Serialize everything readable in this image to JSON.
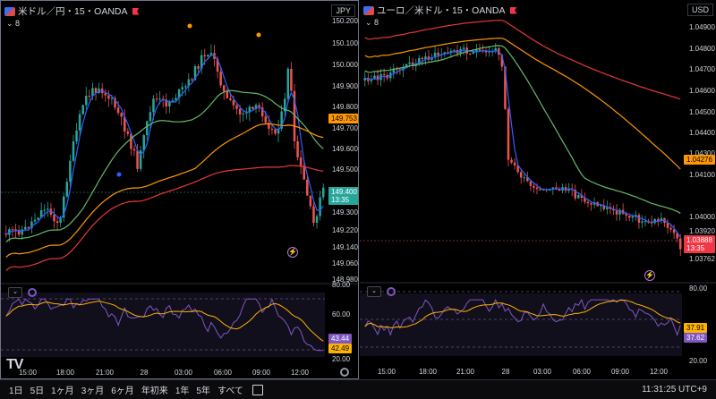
{
  "left": {
    "title": "米ドル／円・15・OANDA",
    "collapse": "⌄ 8",
    "currency": "JPY",
    "price_axis": [
      "150.200",
      "150.100",
      "150.000",
      "149.900",
      "149.800",
      "149.700",
      "149.600",
      "149.500",
      "149.300",
      "149.220",
      "149.140",
      "149.060",
      "148.980"
    ],
    "tag_orange": "149.753",
    "tag_current": "149.400",
    "tag_current_time": "13:35",
    "indicator_axis": [
      "80.00",
      "60.00",
      "20.00"
    ],
    "indicator_tag_yellow": "43.44",
    "indicator_tag_purple": "42.49",
    "time_axis": [
      "15:00",
      "18:00",
      "21:00",
      "28",
      "03:00",
      "06:00",
      "09:00",
      "12:00"
    ],
    "logo": "TV"
  },
  "right": {
    "title": "ユーロ／米ドル・15・OANDA",
    "collapse": "⌄ 8",
    "currency": "USD",
    "price_axis": [
      "1.04900",
      "1.04800",
      "1.04700",
      "1.04600",
      "1.04500",
      "1.04400",
      "1.04300",
      "1.04100",
      "1.04000",
      "1.03920",
      "1.03762"
    ],
    "tag_orange": "1.04276",
    "tag_current": "1.03888",
    "tag_current_time": "13:35",
    "indicator_axis": [
      "80.00",
      "20.00"
    ],
    "indicator_tag_yellow": "37.91",
    "indicator_tag_purple": "37.62",
    "time_axis": [
      "15:00",
      "18:00",
      "21:00",
      "28",
      "03:00",
      "06:00",
      "09:00",
      "12:00"
    ]
  },
  "bottom": {
    "ranges": [
      "1日",
      "5日",
      "1ヶ月",
      "3ヶ月",
      "6ヶ月",
      "年初来",
      "1年",
      "5年",
      "すべて"
    ],
    "clock": "11:31:25 UTC+9"
  },
  "colors": {
    "up": "#26a69a",
    "down": "#ef5350",
    "ma_blue": "#2962ff",
    "ma_green": "#66bb6a",
    "ma_orange": "#ff9800",
    "ma_red": "#e53935",
    "rsi": "#7e57c2",
    "rsi_ma": "#ffb300"
  }
}
